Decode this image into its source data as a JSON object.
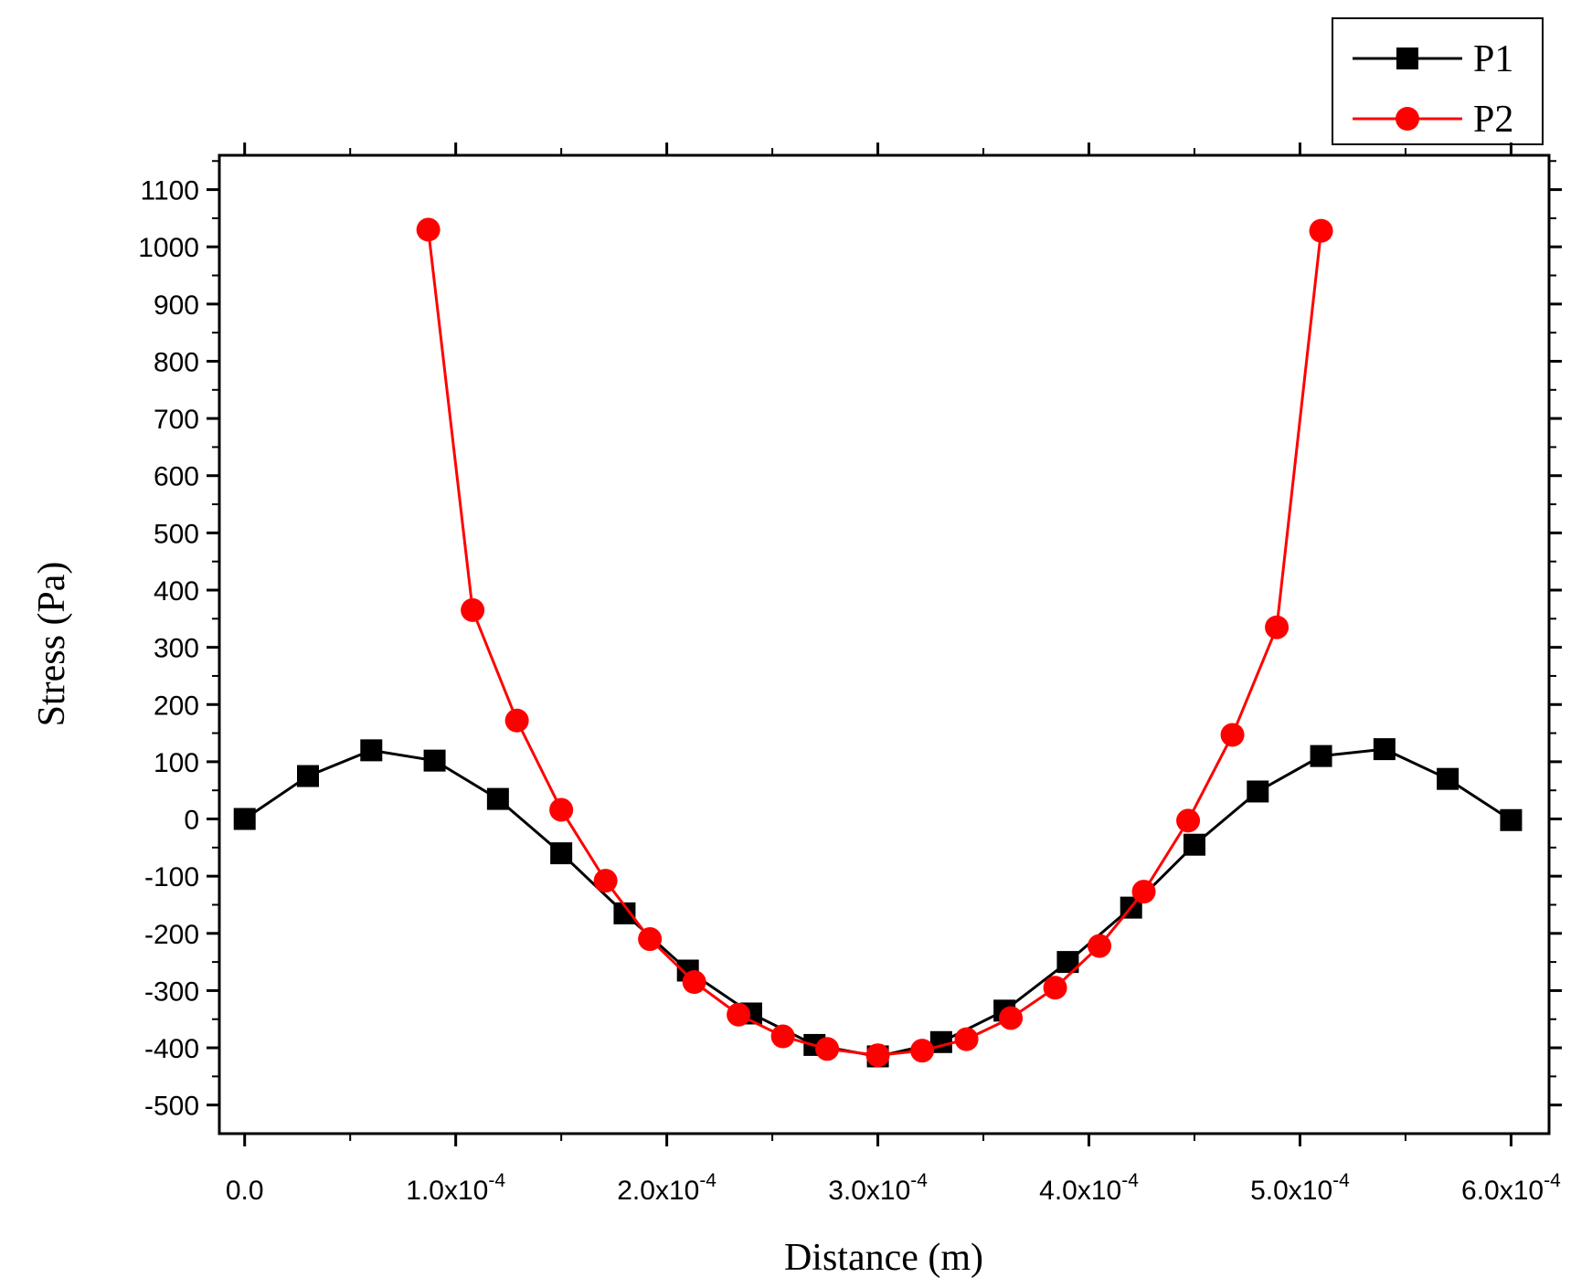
{
  "chart_data": {
    "type": "line",
    "title": "",
    "xlabel": "Distance (m)",
    "ylabel": "Stress (Pa)",
    "xlim": [
      -1.2e-05,
      0.000618
    ],
    "ylim": [
      -550,
      1160
    ],
    "x_ticks": [
      {
        "value": 0.0,
        "mantissa": "0.0",
        "exp": ""
      },
      {
        "value": 0.0001,
        "mantissa": "1.0x10",
        "exp": "-4"
      },
      {
        "value": 0.0002,
        "mantissa": "2.0x10",
        "exp": "-4"
      },
      {
        "value": 0.0003,
        "mantissa": "3.0x10",
        "exp": "-4"
      },
      {
        "value": 0.0004,
        "mantissa": "4.0x10",
        "exp": "-4"
      },
      {
        "value": 0.0005,
        "mantissa": "5.0x10",
        "exp": "-4"
      },
      {
        "value": 0.0006,
        "mantissa": "6.0x10",
        "exp": "-4"
      }
    ],
    "y_ticks": [
      1100,
      1000,
      900,
      800,
      700,
      600,
      500,
      400,
      300,
      200,
      100,
      0,
      -100,
      -200,
      -300,
      -400,
      -500
    ],
    "grid": false,
    "legend_position": "top-right",
    "series": [
      {
        "name": "P1",
        "color": "#000000",
        "marker": "square",
        "x": [
          0.0,
          3e-05,
          6e-05,
          9e-05,
          0.00012,
          0.00015,
          0.00018,
          0.00021,
          0.00024,
          0.00027,
          0.0003,
          0.00033,
          0.00036,
          0.00039,
          0.00042,
          0.00045,
          0.00048,
          0.00051,
          0.00054,
          0.00057,
          0.0006
        ],
        "y": [
          0,
          75,
          120,
          102,
          35,
          -60,
          -165,
          -265,
          -340,
          -395,
          -415,
          -390,
          -335,
          -250,
          -155,
          -45,
          48,
          110,
          122,
          70,
          -2
        ]
      },
      {
        "name": "P2",
        "color": "#ff0000",
        "marker": "circle",
        "x": [
          8.7e-05,
          0.000108,
          0.000129,
          0.00015,
          0.000171,
          0.000192,
          0.000213,
          0.000234,
          0.000255,
          0.000276,
          0.0003,
          0.000321,
          0.000342,
          0.000363,
          0.000384,
          0.000405,
          0.000426,
          0.000447,
          0.000468,
          0.000489,
          0.00051
        ],
        "y": [
          1030,
          365,
          172,
          16,
          -108,
          -210,
          -285,
          -342,
          -380,
          -402,
          -413,
          -405,
          -385,
          -348,
          -295,
          -222,
          -127,
          -3,
          147,
          335,
          1028
        ]
      }
    ]
  }
}
